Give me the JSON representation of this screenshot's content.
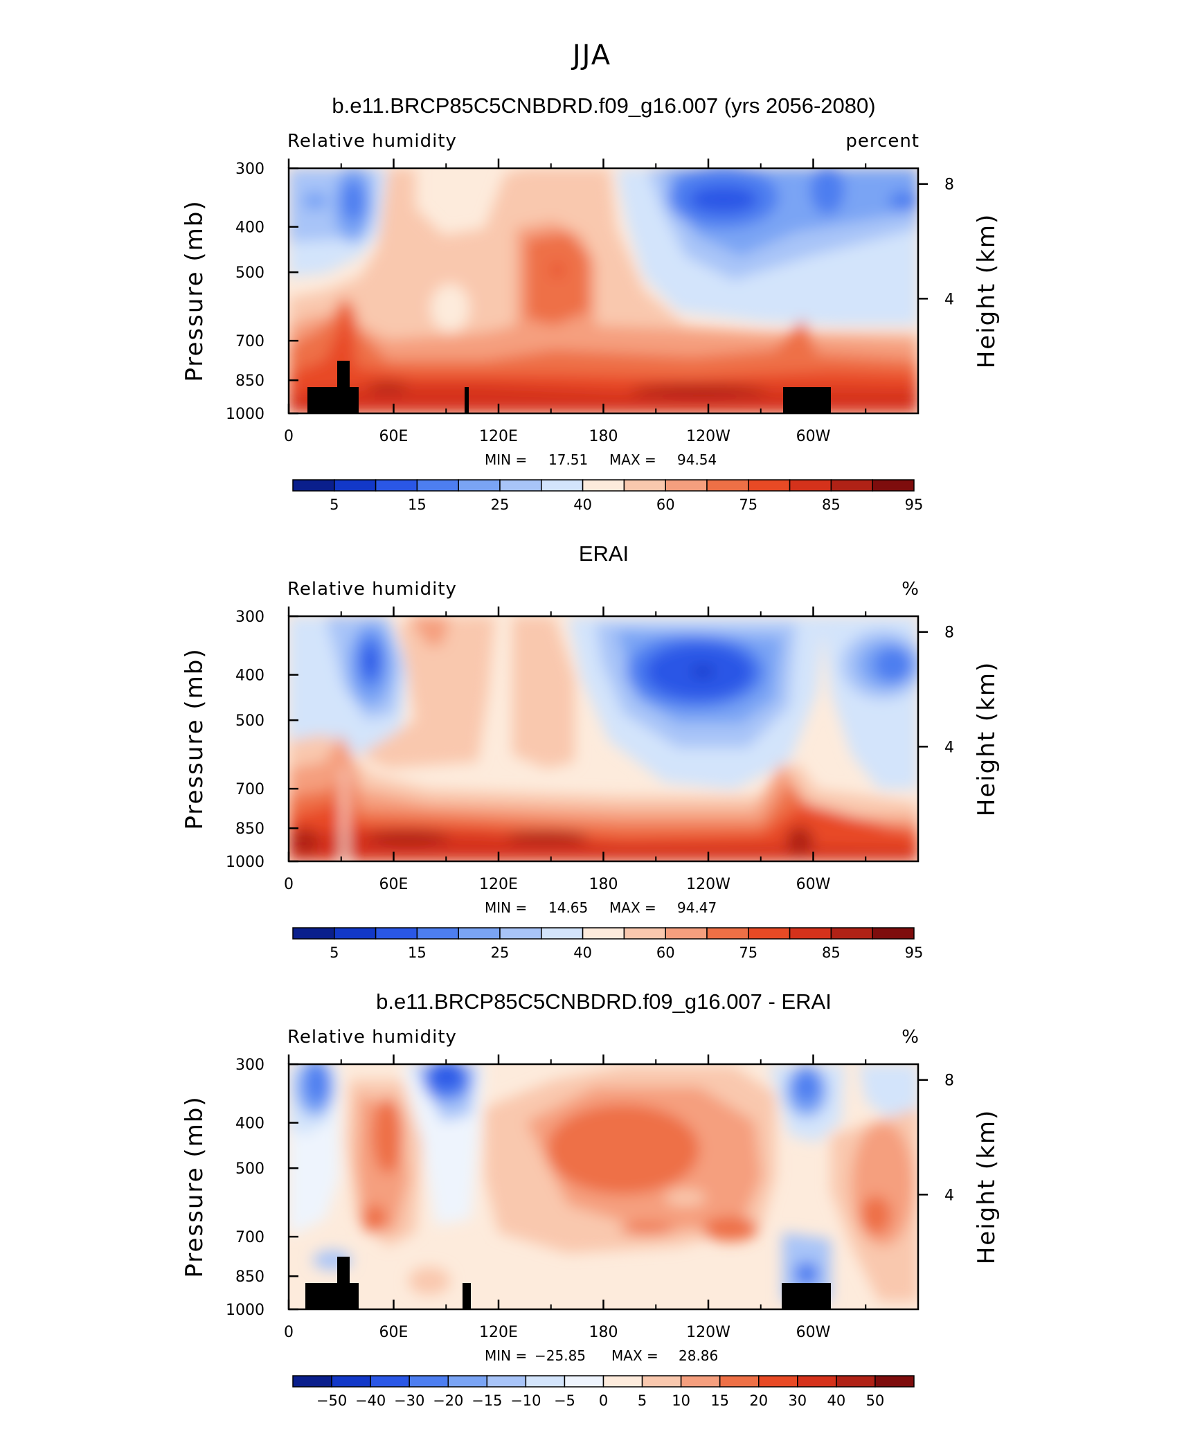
{
  "figure": {
    "title": "JJA"
  },
  "colors": {
    "abs": [
      "#0a1f8c",
      "#1238c8",
      "#2a57e6",
      "#4d7ef0",
      "#7aa4f4",
      "#a8c4f8",
      "#d3e4fb",
      "#fdebdc",
      "#f9c8ae",
      "#f59f7e",
      "#ee7046",
      "#e84a25",
      "#d5321b",
      "#b02216",
      "#7e0d0d"
    ],
    "diff": [
      "#0a1f8c",
      "#1238c8",
      "#2a57e6",
      "#4d7ef0",
      "#7aa4f4",
      "#a8c4f8",
      "#d3e4fb",
      "#eef4fd",
      "#fdebdc",
      "#f9c8ae",
      "#f59f7e",
      "#ee7046",
      "#e84a25",
      "#d5321b",
      "#b02216",
      "#7e0d0d"
    ]
  },
  "chart_data": [
    {
      "type": "heatmap",
      "title": "b.e11.BRCP85C5CNBDRD.f09_g16.007 (yrs 2056-2080)",
      "variable": "Relative humidity",
      "units": "percent",
      "xlabel": "",
      "ylabel": "Pressure (mb)",
      "y2label": "Height (km)",
      "xticks": [
        "0",
        "60E",
        "120E",
        "180",
        "120W",
        "60W"
      ],
      "yticks": [
        "300",
        "400",
        "500",
        "700",
        "850",
        "1000"
      ],
      "y2ticks": [
        "8",
        "4"
      ],
      "min_label": "MIN =",
      "min": "17.51",
      "max_label": "MAX =",
      "max": "94.54",
      "colorbar_labels": [
        "5",
        "15",
        "25",
        "40",
        "60",
        "75",
        "85",
        "95"
      ],
      "colorbar_scale": "abs",
      "topography": true
    },
    {
      "type": "heatmap",
      "title": "ERAI",
      "variable": "Relative humidity",
      "units": "%",
      "xlabel": "",
      "ylabel": "Pressure (mb)",
      "y2label": "Height (km)",
      "xticks": [
        "0",
        "60E",
        "120E",
        "180",
        "120W",
        "60W"
      ],
      "yticks": [
        "300",
        "400",
        "500",
        "700",
        "850",
        "1000"
      ],
      "y2ticks": [
        "8",
        "4"
      ],
      "min_label": "MIN =",
      "min": "14.65",
      "max_label": "MAX =",
      "max": "94.47",
      "colorbar_labels": [
        "5",
        "15",
        "25",
        "40",
        "60",
        "75",
        "85",
        "95"
      ],
      "colorbar_scale": "abs",
      "topography": false
    },
    {
      "type": "heatmap",
      "title": "b.e11.BRCP85C5CNBDRD.f09_g16.007 - ERAI",
      "variable": "Relative humidity",
      "units": "%",
      "xlabel": "",
      "ylabel": "Pressure (mb)",
      "y2label": "Height (km)",
      "xticks": [
        "0",
        "60E",
        "120E",
        "180",
        "120W",
        "60W"
      ],
      "yticks": [
        "300",
        "400",
        "500",
        "700",
        "850",
        "1000"
      ],
      "y2ticks": [
        "8",
        "4"
      ],
      "min_label": "MIN =",
      "min": "−25.85",
      "max_label": "MAX =",
      "max": "28.86",
      "colorbar_labels": [
        "−50",
        "−40",
        "−30",
        "−20",
        "−15",
        "−10",
        "−5",
        "0",
        "5",
        "10",
        "15",
        "20",
        "30",
        "40",
        "50"
      ],
      "colorbar_scale": "diff",
      "topography": true
    }
  ]
}
